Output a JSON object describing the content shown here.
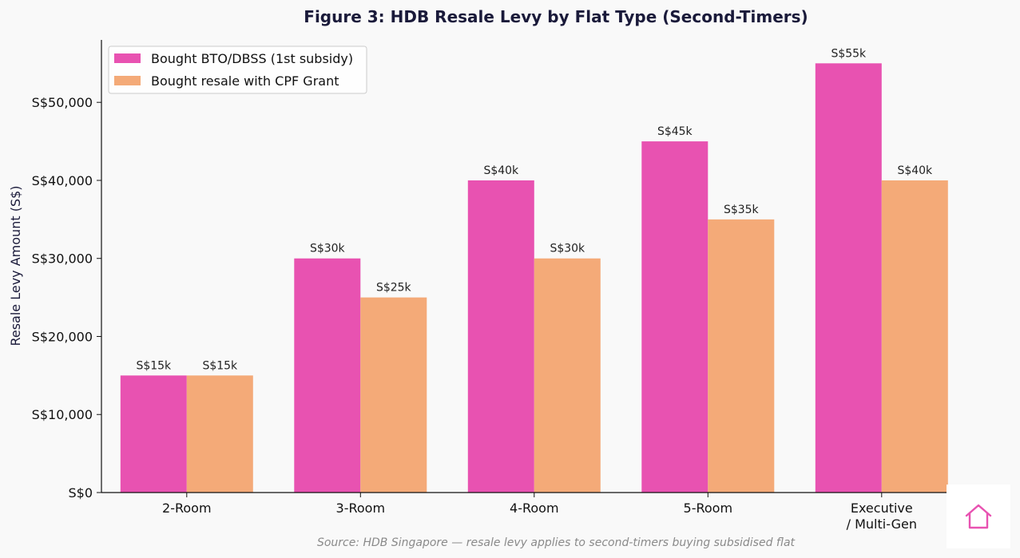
{
  "chart_data": {
    "type": "bar",
    "title": "Figure 3: HDB Resale Levy by Flat Type (Second-Timers)",
    "xlabel": "",
    "ylabel": "Resale Levy Amount (S$)",
    "ylim": [
      0,
      58000
    ],
    "yticks": [
      0,
      10000,
      20000,
      30000,
      40000,
      50000
    ],
    "ytick_labels": [
      "S$0",
      "S$10,000",
      "S$20,000",
      "S$30,000",
      "S$40,000",
      "S$50,000"
    ],
    "categories": [
      "2-Room",
      "3-Room",
      "4-Room",
      "5-Room",
      "Executive\n/ Multi-Gen"
    ],
    "series": [
      {
        "name": "Bought BTO/DBSS (1st subsidy)",
        "color": "#e852b1",
        "values": [
          15000,
          30000,
          40000,
          45000,
          55000
        ],
        "labels": [
          "S$15k",
          "S$30k",
          "S$40k",
          "S$45k",
          "S$55k"
        ]
      },
      {
        "name": "Bought resale with CPF Grant",
        "color": "#f4aa78",
        "values": [
          15000,
          25000,
          30000,
          35000,
          40000
        ],
        "labels": [
          "S$15k",
          "S$25k",
          "S$30k",
          "S$35k",
          "S$40k"
        ]
      }
    ],
    "legend_position": "top-left",
    "grid": false,
    "source": "Source: HDB Singapore — resale levy applies to second-timers buying subsidised flat"
  },
  "logo": {
    "icon": "house-icon",
    "color": "#e852b1"
  }
}
